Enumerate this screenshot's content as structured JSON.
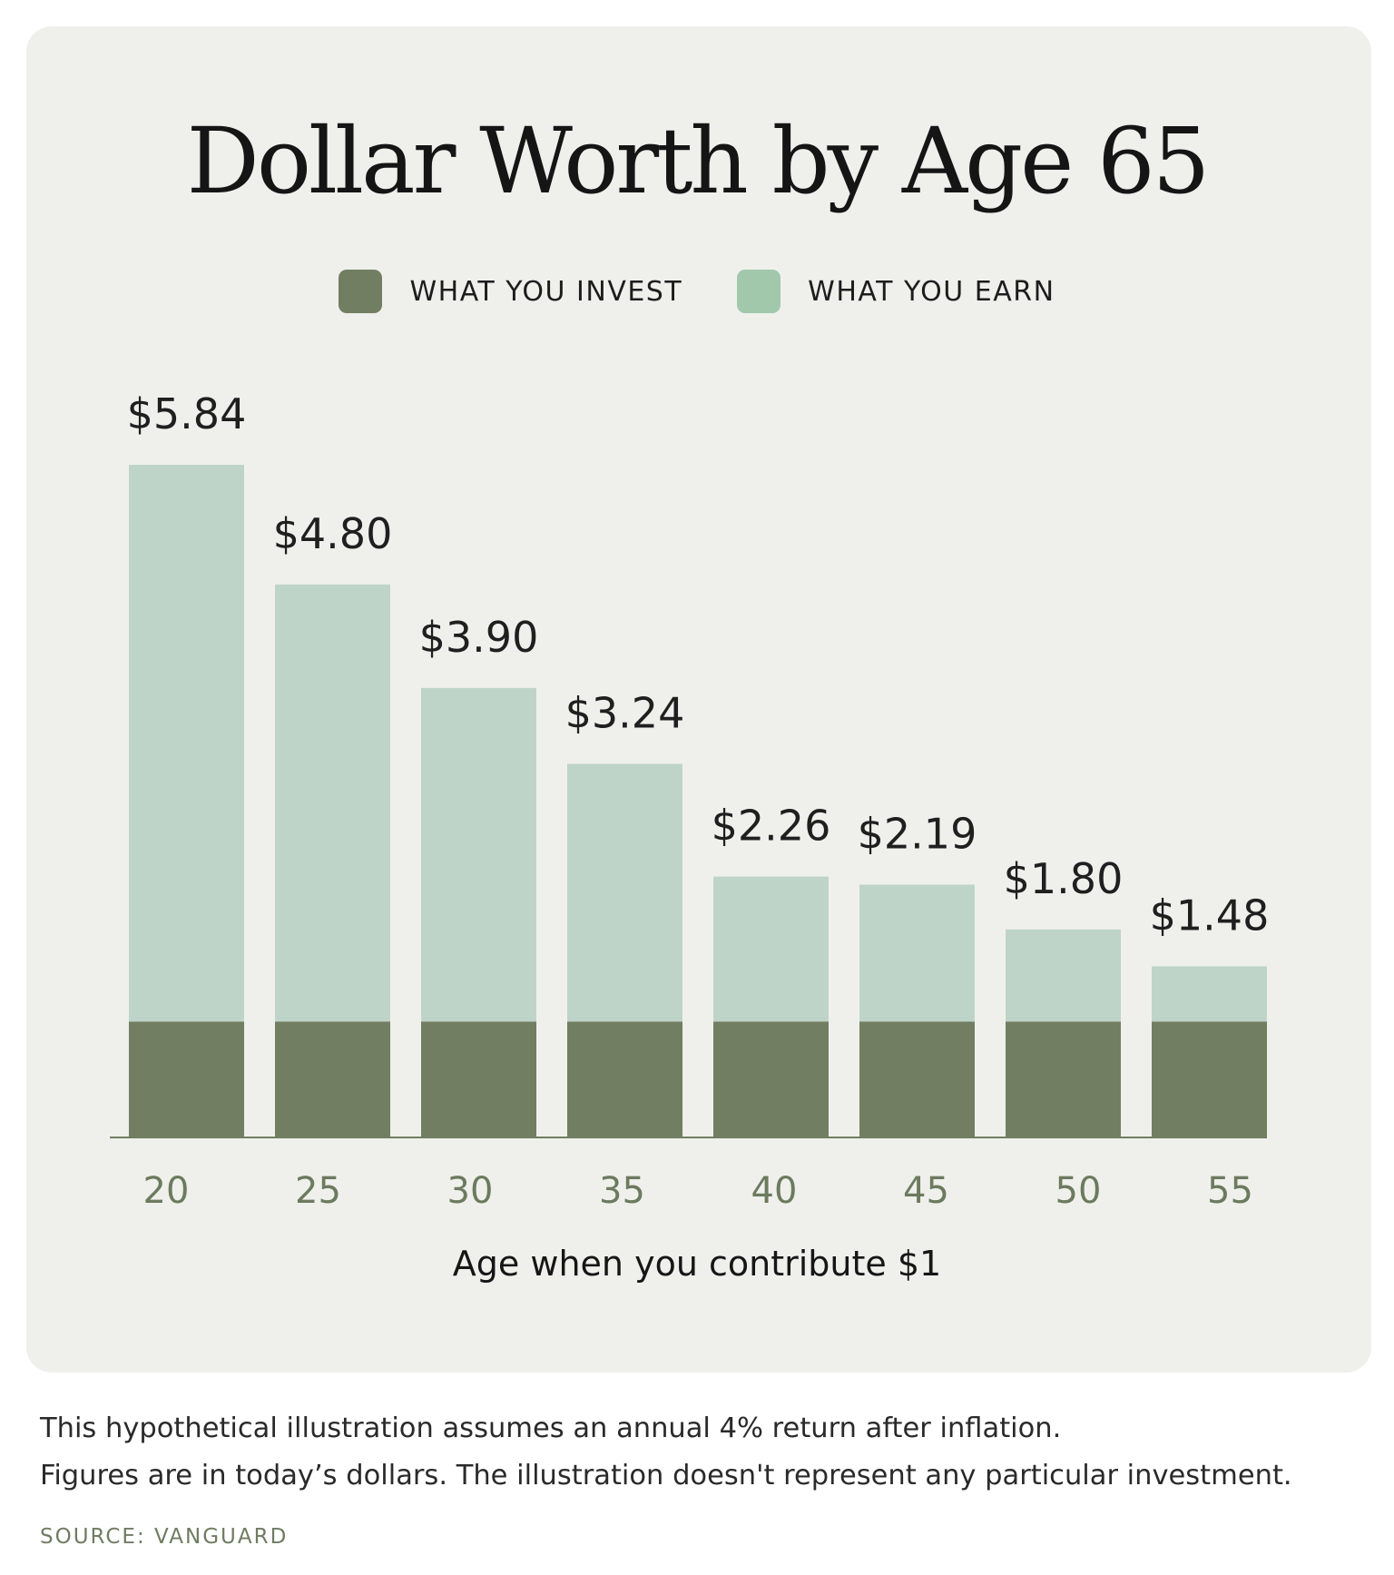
{
  "chart_data": {
    "type": "bar",
    "stacked": true,
    "title": "Dollar Worth by Age 65",
    "xlabel": "Age when you contribute $1",
    "ylabel": "",
    "categories": [
      "20",
      "25",
      "30",
      "35",
      "40",
      "45",
      "50",
      "55"
    ],
    "series": [
      {
        "name": "WHAT YOU INVEST",
        "color": "#717e62",
        "values": [
          1,
          1,
          1,
          1,
          1,
          1,
          1,
          1
        ]
      },
      {
        "name": "WHAT YOU EARN",
        "color": "#bfd4c9",
        "values": [
          4.84,
          3.8,
          2.9,
          2.24,
          1.26,
          1.19,
          0.8,
          0.48
        ]
      }
    ],
    "totals": [
      5.84,
      4.8,
      3.9,
      3.24,
      2.26,
      2.19,
      1.8,
      1.48
    ],
    "data_labels": [
      "$5.84",
      "$4.80",
      "$3.90",
      "$3.24",
      "$2.26",
      "$2.19",
      "$1.80",
      "$1.48"
    ],
    "ylim": [
      0,
      5.84
    ],
    "grid": false,
    "legend_position": "top-center",
    "legend": [
      {
        "label": "WHAT YOU INVEST",
        "color": "#717e62"
      },
      {
        "label": "WHAT YOU EARN",
        "color": "#a2c8ac"
      }
    ],
    "axis_color": "#717e62"
  },
  "footnotes": [
    "This hypothetical illustration assumes an annual 4% return after inflation.",
    "Figures are in today’s dollars. The illustration doesn't represent any particular investment."
  ],
  "source": "SOURCE: VANGUARD"
}
